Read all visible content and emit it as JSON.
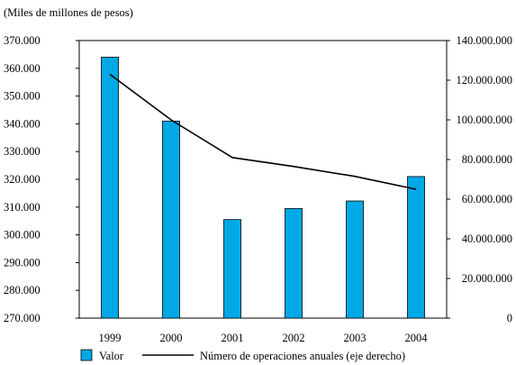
{
  "chart_data": {
    "type": "bar",
    "unit_label": "(Miles de millones de pesos)",
    "categories": [
      "1999",
      "2000",
      "2001",
      "2002",
      "2003",
      "2004"
    ],
    "left_axis": {
      "ylim": [
        270000,
        370000
      ],
      "ticks": [
        "270.000",
        "280.000",
        "290.000",
        "300.000",
        "310.000",
        "320.000",
        "330.000",
        "340.000",
        "350.000",
        "360.000",
        "370.000"
      ]
    },
    "right_axis": {
      "ylim": [
        0,
        140000000
      ],
      "ticks": [
        "0",
        "20.000.000",
        "40.000.000",
        "60.000.000",
        "80.000.000",
        "100.000.000",
        "120.000.000",
        "140.000.000"
      ]
    },
    "series": [
      {
        "name": "Valor",
        "type": "bar",
        "axis": "left",
        "color": "#00A9E6",
        "values": [
          364000,
          341000,
          305500,
          309500,
          312200,
          321000
        ]
      },
      {
        "name": "Número de operaciones anuales (eje derecho)",
        "type": "line",
        "axis": "right",
        "color": "#000000",
        "values": [
          123000000,
          100000000,
          81000000,
          76500000,
          71500000,
          65000000
        ]
      }
    ],
    "grid": false,
    "legend_position": "bottom"
  }
}
